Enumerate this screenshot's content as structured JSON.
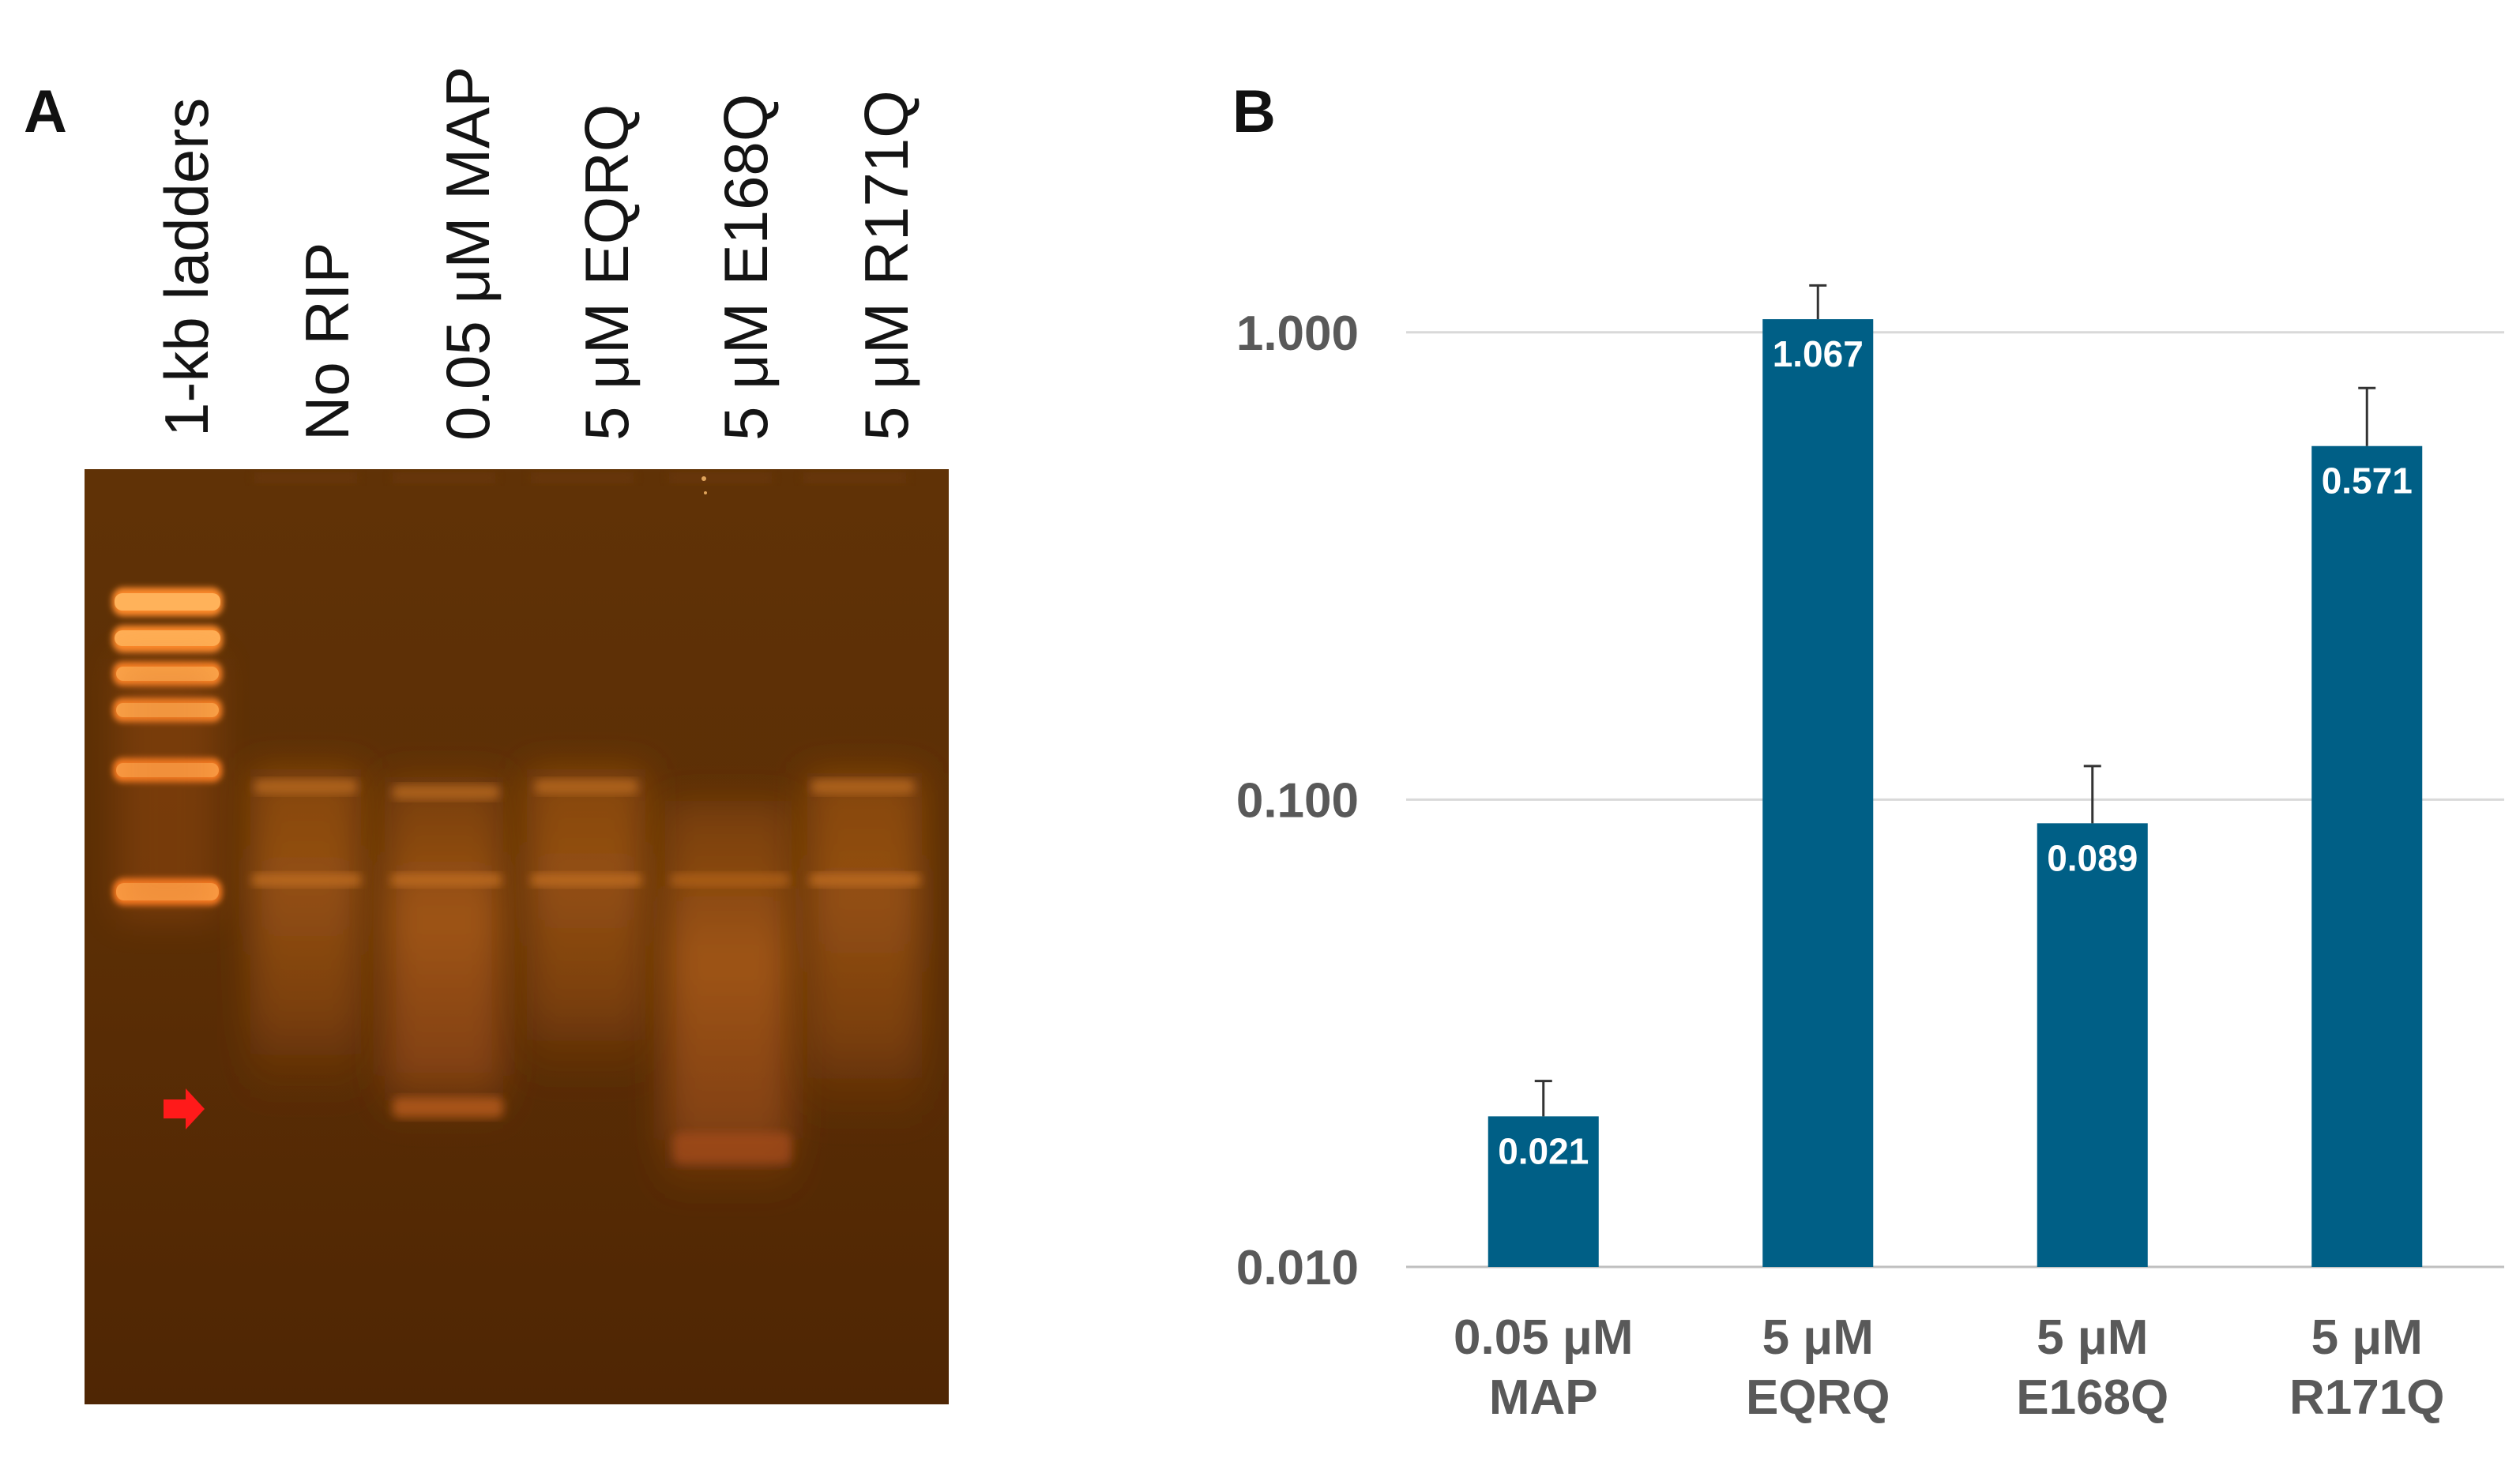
{
  "panel_a": {
    "letter": "A",
    "lanes": [
      {
        "label": "1-kb ladders"
      },
      {
        "label": "No RIP"
      },
      {
        "label": "0.05 μM MAP"
      },
      {
        "label": "5 μM EQRQ"
      },
      {
        "label": "5 μM E168Q"
      },
      {
        "label": "5 μM R171Q"
      }
    ],
    "arrow_color": "#ff1a1a"
  },
  "chart_data": {
    "type": "bar",
    "panel_letter": "B",
    "categories": [
      [
        "0.05 μM",
        "MAP"
      ],
      [
        "5 μM",
        "EQRQ"
      ],
      [
        "5 μM",
        "E168Q"
      ],
      [
        "5 μM",
        "R171Q"
      ]
    ],
    "values": [
      0.021,
      1.067,
      0.089,
      0.571
    ],
    "data_labels": [
      "0.021",
      "1.067",
      "0.089",
      "0.571"
    ],
    "error_upper": [
      0.025,
      1.26,
      0.118,
      0.76
    ],
    "y_scale": "log",
    "ylim": [
      0.01,
      1.6
    ],
    "y_ticks": [
      0.01,
      0.1,
      1
    ],
    "y_tick_labels": [
      "0.010",
      "0.100",
      "1.000"
    ],
    "grid": true,
    "bar_color": "#005f86",
    "grid_color": "#d9d9d9",
    "axis_color": "#bfbfbf",
    "xlabel": "",
    "ylabel": ""
  }
}
